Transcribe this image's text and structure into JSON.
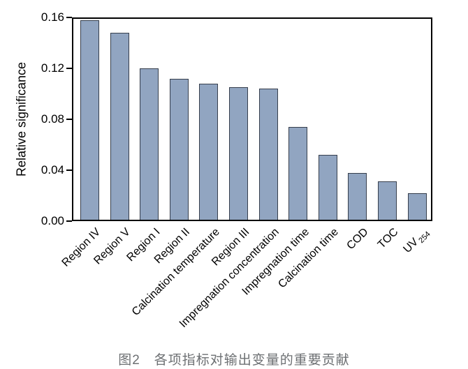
{
  "caption": "图2　各项指标对输出变量的重要贡献",
  "chart_data": {
    "type": "bar",
    "title": "",
    "xlabel": "",
    "ylabel": "Relative significance",
    "ylim": [
      0,
      0.16
    ],
    "yticks": [
      0,
      0.04,
      0.08,
      0.12,
      0.16
    ],
    "ytick_labels": [
      "0.00",
      "0.04",
      "0.08",
      "0.12",
      "0.16"
    ],
    "grid": false,
    "legend": "none",
    "bar_fill_color": "#91a5c1",
    "bar_border_color": "#363e4c",
    "axis_color": "#000000",
    "categories": [
      "Region IV",
      "Region V",
      "Region I",
      "Region II",
      "Calcination temperature",
      "Region III",
      "Impregnation concentration",
      "Impregnation time",
      "Calcination time",
      "COD",
      "TOC",
      "UV_254"
    ],
    "values": [
      0.158,
      0.148,
      0.12,
      0.112,
      0.108,
      0.105,
      0.104,
      0.074,
      0.052,
      0.038,
      0.031,
      0.022
    ]
  }
}
